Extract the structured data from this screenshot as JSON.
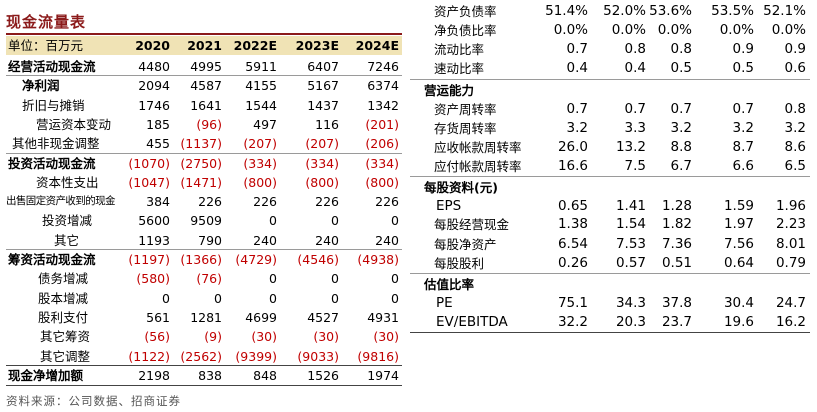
{
  "title": "现金流量表",
  "source": "资料来源：公司数据、招商证券",
  "left_table": {
    "header": {
      "label": "单位：百万元",
      "cols": [
        "2020",
        "2021",
        "2022E",
        "2023E",
        "2024E"
      ]
    },
    "rows": [
      {
        "label": "经营活动现金流",
        "values": [
          "4480",
          "4995",
          "5911",
          "6407",
          "7246"
        ],
        "bold": true
      },
      {
        "label": "净利润",
        "values": [
          "2094",
          "4587",
          "4155",
          "5167",
          "6374"
        ],
        "bold": true
      },
      {
        "label": "折旧与摊销",
        "values": [
          "1746",
          "1641",
          "1544",
          "1437",
          "1342"
        ]
      },
      {
        "label": "营运资本变动",
        "values": [
          "185",
          "(96)",
          "497",
          "116",
          "(201)"
        ]
      },
      {
        "label": "其他非现金调整",
        "values": [
          "455",
          "(1137)",
          "(207)",
          "(207)",
          "(206)"
        ]
      },
      {
        "label": "投资活动现金流",
        "values": [
          "(1070)",
          "(2750)",
          "(334)",
          "(334)",
          "(334)"
        ],
        "bold": true
      },
      {
        "label": "资本性支出",
        "values": [
          "(1047)",
          "(1471)",
          "(800)",
          "(800)",
          "(800)"
        ]
      },
      {
        "label": "出售固定资产收到的现金",
        "values": [
          "384",
          "226",
          "226",
          "226",
          "226"
        ]
      },
      {
        "label": "投资增减",
        "values": [
          "5600",
          "9509",
          "0",
          "0",
          "0"
        ]
      },
      {
        "label": "其它",
        "values": [
          "1193",
          "790",
          "240",
          "240",
          "240"
        ]
      },
      {
        "label": "筹资活动现金流",
        "values": [
          "(1197)",
          "(1366)",
          "(4729)",
          "(4546)",
          "(4938)"
        ],
        "bold": true
      },
      {
        "label": "债务增减",
        "values": [
          "(580)",
          "(76)",
          "0",
          "0",
          "0"
        ]
      },
      {
        "label": "股本增减",
        "values": [
          "0",
          "0",
          "0",
          "0",
          "0"
        ]
      },
      {
        "label": "股利支付",
        "values": [
          "561",
          "1281",
          "4699",
          "4527",
          "4931"
        ]
      },
      {
        "label": "其它筹资",
        "values": [
          "(56)",
          "(9)",
          "(30)",
          "(30)",
          "(30)"
        ]
      },
      {
        "label": "其它调整",
        "values": [
          "(1122)",
          "(2562)",
          "(9399)",
          "(9033)",
          "(9816)"
        ]
      },
      {
        "label": "现金净增加额",
        "values": [
          "2198",
          "838",
          "848",
          "1526",
          "1974"
        ],
        "bold": true
      }
    ]
  },
  "right_table": {
    "rows": [
      {
        "label": "资产负债率",
        "values": [
          "51.4%",
          "52.0%",
          "53.6%",
          "53.5%",
          "52.1%"
        ]
      },
      {
        "label": "净负债比率",
        "values": [
          "0.0%",
          "0.0%",
          "0.0%",
          "0.0%",
          "0.0%"
        ]
      },
      {
        "label": "流动比率",
        "values": [
          "0.7",
          "0.8",
          "0.8",
          "0.9",
          "0.9"
        ]
      },
      {
        "label": "速动比率",
        "values": [
          "0.4",
          "0.4",
          "0.5",
          "0.5",
          "0.6"
        ]
      },
      {
        "label": "营运能力",
        "section": true
      },
      {
        "label": "资产周转率",
        "values": [
          "0.7",
          "0.7",
          "0.7",
          "0.7",
          "0.8"
        ]
      },
      {
        "label": "存货周转率",
        "values": [
          "3.2",
          "3.3",
          "3.2",
          "3.2",
          "3.2"
        ]
      },
      {
        "label": "应收帐款周转率",
        "values": [
          "26.0",
          "13.2",
          "8.8",
          "8.7",
          "8.6"
        ]
      },
      {
        "label": "应付帐款周转率",
        "values": [
          "16.6",
          "7.5",
          "6.7",
          "6.6",
          "6.5"
        ]
      },
      {
        "label": "每股资料(元)",
        "section": true
      },
      {
        "label": "EPS",
        "values": [
          "0.65",
          "1.41",
          "1.28",
          "1.59",
          "1.96"
        ]
      },
      {
        "label": "每股经营现金",
        "values": [
          "1.38",
          "1.54",
          "1.82",
          "1.97",
          "2.23"
        ]
      },
      {
        "label": "每股净资产",
        "values": [
          "6.54",
          "7.53",
          "7.36",
          "7.56",
          "8.01"
        ]
      },
      {
        "label": "每股股利",
        "values": [
          "0.26",
          "0.57",
          "0.51",
          "0.64",
          "0.79"
        ]
      },
      {
        "label": "估值比率",
        "section": true
      },
      {
        "label": "PE",
        "values": [
          "75.1",
          "34.3",
          "37.8",
          "30.4",
          "24.7"
        ]
      },
      {
        "label": "EV/EBITDA",
        "values": [
          "32.2",
          "20.3",
          "23.7",
          "19.6",
          "16.2"
        ]
      }
    ]
  }
}
